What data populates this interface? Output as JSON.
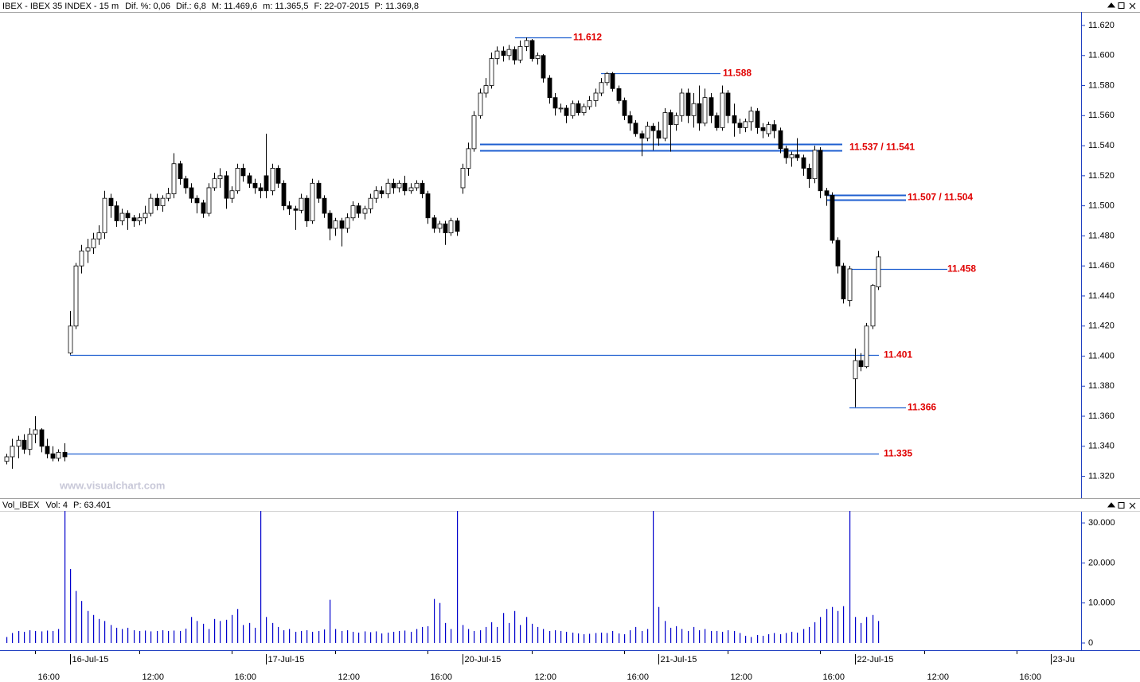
{
  "chart_data": [
    {
      "type": "candlestick",
      "title": "IBEX - IBEX 35 INDEX - 15 m",
      "header": [
        "Dif. %: 0,06",
        "Dif.: 6,8",
        "M: 11.469,6",
        "m: 11.365,5",
        "F: 22-07-2015",
        "P: 11.369,8"
      ],
      "watermark": "www.visualchart.com",
      "up_color": "#ffffff",
      "down_color": "#000000",
      "wick_color": "#000000",
      "level_color": "#1f5fd0",
      "level_label_color": "#e00000",
      "ylim": [
        11306,
        11629
      ],
      "yticks": [
        {
          "value": 11320,
          "label": "11.320"
        },
        {
          "value": 11340,
          "label": "11.340"
        },
        {
          "value": 11360,
          "label": "11.360"
        },
        {
          "value": 11380,
          "label": "11.380"
        },
        {
          "value": 11400,
          "label": "11.400"
        },
        {
          "value": 11420,
          "label": "11.420"
        },
        {
          "value": 11440,
          "label": "11.440"
        },
        {
          "value": 11460,
          "label": "11.460"
        },
        {
          "value": 11480,
          "label": "11.480"
        },
        {
          "value": 11500,
          "label": "11.500"
        },
        {
          "value": 11520,
          "label": "11.520"
        },
        {
          "value": 11540,
          "label": "11.540"
        },
        {
          "value": 11560,
          "label": "11.560"
        },
        {
          "value": 11580,
          "label": "11.580"
        },
        {
          "value": 11600,
          "label": "11.600"
        },
        {
          "value": 11620,
          "label": "11.620"
        }
      ],
      "levels": [
        {
          "label": "11.612",
          "values": [
            11612
          ]
        },
        {
          "label": "11.588",
          "values": [
            11588
          ]
        },
        {
          "label": "11.537 / 11.541",
          "values": [
            11537,
            11541
          ]
        },
        {
          "label": "11.507 / 11.504",
          "values": [
            11507,
            11504
          ]
        },
        {
          "label": "11.458",
          "values": [
            11458
          ]
        },
        {
          "label": "11.401",
          "values": [
            11401
          ]
        },
        {
          "label": "11.366",
          "values": [
            11366
          ]
        },
        {
          "label": "11.335",
          "values": [
            11335
          ]
        }
      ],
      "candles": [
        [
          11330,
          11335,
          11328,
          11333
        ],
        [
          11333,
          11345,
          11325,
          11340
        ],
        [
          11340,
          11347,
          11332,
          11344
        ],
        [
          11344,
          11348,
          11335,
          11338
        ],
        [
          11338,
          11352,
          11334,
          11348
        ],
        [
          11348,
          11360,
          11342,
          11351
        ],
        [
          11351,
          11352,
          11336,
          11340
        ],
        [
          11340,
          11345,
          11332,
          11335
        ],
        [
          11335,
          11340,
          11330,
          11332
        ],
        [
          11332,
          11338,
          11330,
          11336
        ],
        [
          11336,
          11342,
          11330,
          11333
        ],
        [
          11402,
          11430,
          11401,
          11420
        ],
        [
          11420,
          11462,
          11418,
          11460
        ],
        [
          11460,
          11474,
          11455,
          11470
        ],
        [
          11470,
          11478,
          11462,
          11472
        ],
        [
          11472,
          11482,
          11468,
          11478
        ],
        [
          11478,
          11487,
          11474,
          11482
        ],
        [
          11482,
          11510,
          11478,
          11505
        ],
        [
          11505,
          11508,
          11492,
          11500
        ],
        [
          11500,
          11503,
          11486,
          11490
        ],
        [
          11490,
          11498,
          11487,
          11495
        ],
        [
          11495,
          11497,
          11484,
          11492
        ],
        [
          11492,
          11494,
          11486,
          11490
        ],
        [
          11490,
          11495,
          11487,
          11492
        ],
        [
          11492,
          11500,
          11488,
          11495
        ],
        [
          11495,
          11508,
          11493,
          11505
        ],
        [
          11505,
          11508,
          11497,
          11500
        ],
        [
          11500,
          11507,
          11496,
          11505
        ],
        [
          11505,
          11512,
          11503,
          11508
        ],
        [
          11508,
          11535,
          11505,
          11528
        ],
        [
          11528,
          11530,
          11514,
          11518
        ],
        [
          11518,
          11520,
          11508,
          11512
        ],
        [
          11512,
          11515,
          11502,
          11505
        ],
        [
          11505,
          11507,
          11495,
          11502
        ],
        [
          11502,
          11504,
          11492,
          11495
        ],
        [
          11495,
          11515,
          11493,
          11512
        ],
        [
          11512,
          11522,
          11510,
          11518
        ],
        [
          11518,
          11525,
          11512,
          11520
        ],
        [
          11520,
          11523,
          11498,
          11505
        ],
        [
          11505,
          11513,
          11502,
          11510
        ],
        [
          11510,
          11528,
          11508,
          11525
        ],
        [
          11525,
          11528,
          11516,
          11520
        ],
        [
          11520,
          11522,
          11512,
          11515
        ],
        [
          11515,
          11518,
          11508,
          11512
        ],
        [
          11512,
          11515,
          11505,
          11510
        ],
        [
          11520,
          11548,
          11505,
          11510
        ],
        [
          11510,
          11528,
          11507,
          11525
        ],
        [
          11525,
          11527,
          11512,
          11515
        ],
        [
          11515,
          11517,
          11497,
          11500
        ],
        [
          11500,
          11503,
          11494,
          11498
        ],
        [
          11498,
          11500,
          11484,
          11497
        ],
        [
          11497,
          11508,
          11495,
          11505
        ],
        [
          11505,
          11507,
          11486,
          11490
        ],
        [
          11490,
          11518,
          11488,
          11515
        ],
        [
          11515,
          11517,
          11502,
          11505
        ],
        [
          11505,
          11507,
          11492,
          11495
        ],
        [
          11495,
          11497,
          11477,
          11485
        ],
        [
          11485,
          11492,
          11480,
          11490
        ],
        [
          11490,
          11492,
          11473,
          11485
        ],
        [
          11485,
          11495,
          11482,
          11492
        ],
        [
          11492,
          11503,
          11490,
          11500
        ],
        [
          11500,
          11502,
          11492,
          11495
        ],
        [
          11495,
          11500,
          11491,
          11498
        ],
        [
          11498,
          11508,
          11495,
          11505
        ],
        [
          11505,
          11513,
          11502,
          11510
        ],
        [
          11510,
          11513,
          11505,
          11508
        ],
        [
          11508,
          11518,
          11505,
          11515
        ],
        [
          11515,
          11518,
          11508,
          11512
        ],
        [
          11512,
          11517,
          11509,
          11515
        ],
        [
          11515,
          11520,
          11507,
          11510
        ],
        [
          11510,
          11515,
          11508,
          11512
        ],
        [
          11512,
          11517,
          11510,
          11515
        ],
        [
          11515,
          11517,
          11505,
          11508
        ],
        [
          11508,
          11510,
          11488,
          11492
        ],
        [
          11492,
          11494,
          11482,
          11485
        ],
        [
          11485,
          11490,
          11482,
          11488
        ],
        [
          11488,
          11490,
          11474,
          11482
        ],
        [
          11482,
          11492,
          11480,
          11490
        ],
        [
          11490,
          11492,
          11480,
          11483
        ],
        [
          11512,
          11528,
          11508,
          11525
        ],
        [
          11525,
          11542,
          11520,
          11538
        ],
        [
          11538,
          11563,
          11536,
          11560
        ],
        [
          11560,
          11578,
          11558,
          11575
        ],
        [
          11575,
          11585,
          11572,
          11580
        ],
        [
          11580,
          11602,
          11578,
          11598
        ],
        [
          11598,
          11606,
          11594,
          11603
        ],
        [
          11603,
          11606,
          11596,
          11600
        ],
        [
          11600,
          11607,
          11597,
          11604
        ],
        [
          11604,
          11606,
          11594,
          11597
        ],
        [
          11597,
          11610,
          11595,
          11606
        ],
        [
          11606,
          11612,
          11603,
          11610
        ],
        [
          11610,
          11611,
          11596,
          11598
        ],
        [
          11598,
          11602,
          11594,
          11600
        ],
        [
          11600,
          11601,
          11582,
          11585
        ],
        [
          11585,
          11587,
          11568,
          11572
        ],
        [
          11572,
          11575,
          11560,
          11565
        ],
        [
          11565,
          11568,
          11562,
          11565
        ],
        [
          11565,
          11567,
          11555,
          11560
        ],
        [
          11560,
          11570,
          11558,
          11568
        ],
        [
          11568,
          11570,
          11560,
          11562
        ],
        [
          11562,
          11568,
          11560,
          11566
        ],
        [
          11566,
          11573,
          11564,
          11570
        ],
        [
          11570,
          11578,
          11566,
          11575
        ],
        [
          11575,
          11585,
          11573,
          11582
        ],
        [
          11582,
          11589,
          11580,
          11588
        ],
        [
          11588,
          11589,
          11576,
          11578
        ],
        [
          11578,
          11580,
          11568,
          11570
        ],
        [
          11570,
          11572,
          11557,
          11560
        ],
        [
          11560,
          11563,
          11550,
          11555
        ],
        [
          11555,
          11557,
          11546,
          11548
        ],
        [
          11548,
          11550,
          11533,
          11545
        ],
        [
          11545,
          11556,
          11543,
          11553
        ],
        [
          11553,
          11555,
          11537,
          11550
        ],
        [
          11550,
          11556,
          11540,
          11545
        ],
        [
          11545,
          11565,
          11543,
          11562
        ],
        [
          11562,
          11564,
          11536,
          11554
        ],
        [
          11554,
          11562,
          11550,
          11560
        ],
        [
          11560,
          11578,
          11556,
          11575
        ],
        [
          11575,
          11578,
          11555,
          11560
        ],
        [
          11560,
          11575,
          11552,
          11568
        ],
        [
          11568,
          11580,
          11550,
          11555
        ],
        [
          11555,
          11578,
          11553,
          11572
        ],
        [
          11572,
          11575,
          11555,
          11560
        ],
        [
          11560,
          11562,
          11550,
          11552
        ],
        [
          11552,
          11580,
          11550,
          11575
        ],
        [
          11575,
          11577,
          11555,
          11560
        ],
        [
          11560,
          11568,
          11546,
          11555
        ],
        [
          11555,
          11558,
          11548,
          11552
        ],
        [
          11552,
          11558,
          11549,
          11556
        ],
        [
          11556,
          11566,
          11550,
          11563
        ],
        [
          11563,
          11565,
          11548,
          11552
        ],
        [
          11552,
          11555,
          11545,
          11550
        ],
        [
          11548,
          11556,
          11546,
          11554
        ],
        [
          11554,
          11557,
          11545,
          11550
        ],
        [
          11550,
          11552,
          11535,
          11538
        ],
        [
          11538,
          11540,
          11528,
          11532
        ],
        [
          11532,
          11536,
          11526,
          11534
        ],
        [
          11534,
          11545,
          11530,
          11532
        ],
        [
          11532,
          11534,
          11520,
          11525
        ],
        [
          11525,
          11528,
          11512,
          11518
        ],
        [
          11518,
          11540,
          11515,
          11537
        ],
        [
          11537,
          11539,
          11505,
          11510
        ],
        [
          11510,
          11512,
          11500,
          11507
        ],
        [
          11507,
          11509,
          11475,
          11477
        ],
        [
          11477,
          11479,
          11455,
          11460
        ],
        [
          11460,
          11462,
          11435,
          11438
        ],
        [
          11437,
          11460,
          11433,
          11458
        ],
        [
          11385,
          11405,
          11366,
          11397
        ],
        [
          11397,
          11402,
          11390,
          11393
        ],
        [
          11393,
          11422,
          11392,
          11420
        ],
        [
          11420,
          11448,
          11418,
          11447
        ],
        [
          11446,
          11470,
          11444,
          11466
        ]
      ]
    },
    {
      "type": "bar",
      "title": "Vol_IBEX",
      "header": [
        "Vol: 4",
        "P: 63.401"
      ],
      "color": "#0000cc",
      "ylim": [
        0,
        33000
      ],
      "yticks": [
        0,
        {
          "value": 10000,
          "label": "10.000"
        },
        {
          "value": 20000,
          "label": "20.000"
        },
        {
          "value": 30000,
          "label": "30.000"
        }
      ],
      "date_ticks": [
        {
          "value": 11,
          "label": "16-Jul-15"
        },
        {
          "value": 45,
          "label": "17-Jul-15"
        },
        {
          "value": 79,
          "label": "20-Jul-15"
        },
        {
          "value": 113,
          "label": "21-Jul-15"
        },
        {
          "value": 147,
          "label": "22-Jul-15"
        },
        {
          "value": 181,
          "label": "23-Ju"
        }
      ],
      "xticks": [
        {
          "value": 5,
          "label": "16:00"
        },
        {
          "value": 23,
          "label": "12:00"
        },
        {
          "value": 39,
          "label": "16:00"
        },
        {
          "value": 57,
          "label": "12:00"
        },
        {
          "value": 73,
          "label": "16:00"
        },
        {
          "value": 91,
          "label": "12:00"
        },
        {
          "value": 107,
          "label": "16:00"
        },
        {
          "value": 125,
          "label": "12:00"
        },
        {
          "value": 141,
          "label": "16:00"
        },
        {
          "value": 159,
          "label": "12:00"
        },
        {
          "value": 175,
          "label": "16:00"
        }
      ],
      "values": [
        1500,
        2500,
        3000,
        2800,
        3200,
        3000,
        2900,
        3100,
        3000,
        3500,
        33000,
        18500,
        13000,
        10500,
        8000,
        7000,
        6000,
        5500,
        4500,
        3800,
        3500,
        3800,
        3200,
        3000,
        3100,
        2900,
        3000,
        3200,
        3000,
        3100,
        3000,
        3600,
        6500,
        5500,
        4800,
        3500,
        6000,
        5500,
        5800,
        7000,
        8500,
        4500,
        5000,
        3800,
        33000,
        6500,
        5000,
        4000,
        3200,
        3500,
        2800,
        3000,
        3200,
        2800,
        3000,
        3400,
        10800,
        3500,
        3000,
        3200,
        2800,
        2600,
        2900,
        2700,
        2900,
        2400,
        2600,
        2800,
        3000,
        3100,
        2800,
        3500,
        4000,
        4200,
        11000,
        10000,
        5000,
        3500,
        33000,
        4500,
        3500,
        3000,
        3200,
        4000,
        5200,
        4000,
        7500,
        5000,
        8000,
        4500,
        6500,
        4800,
        4000,
        3500,
        3000,
        3200,
        3000,
        2800,
        2600,
        2400,
        2200,
        2300,
        2500,
        2600,
        2500,
        3000,
        2400,
        2200,
        3200,
        4000,
        3000,
        3500,
        33000,
        9000,
        5500,
        3800,
        4200,
        3500,
        3000,
        4000,
        3200,
        3500,
        3000,
        3000,
        2800,
        3200,
        3000,
        2500,
        1800,
        1500,
        2000,
        1800,
        2200,
        2500,
        2200,
        2500,
        2800,
        2600,
        3500,
        4000,
        5200,
        6500,
        8500,
        9000,
        8000,
        9200,
        33000,
        6500,
        5000,
        6500,
        7000,
        5500
      ]
    }
  ]
}
